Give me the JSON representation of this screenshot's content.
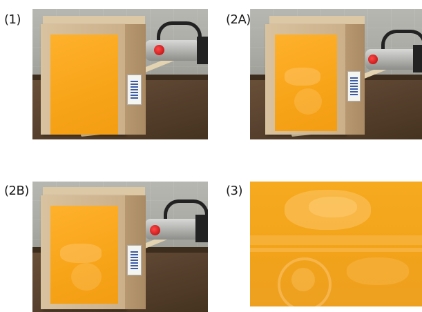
{
  "panels": [
    {
      "id": "1",
      "label": "(1)"
    },
    {
      "id": "2A",
      "label": "(2A)"
    },
    {
      "id": "2B",
      "label": "(2B)"
    },
    {
      "id": "3",
      "label": "(3)"
    }
  ],
  "colors": {
    "orange_panel": "#f7a418",
    "cardboard": "#d3b994",
    "table_wood": "#5a4330",
    "wall": "#acada6",
    "red_indicator": "#d01818"
  }
}
